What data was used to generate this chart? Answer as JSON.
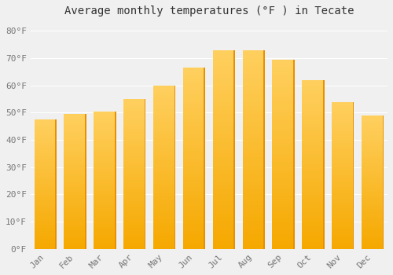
{
  "title": "Average monthly temperatures (°F ) in Tecate",
  "months": [
    "Jan",
    "Feb",
    "Mar",
    "Apr",
    "May",
    "Jun",
    "Jul",
    "Aug",
    "Sep",
    "Oct",
    "Nov",
    "Dec"
  ],
  "values": [
    47.5,
    49.5,
    50.5,
    55.0,
    60.0,
    66.5,
    73.0,
    73.0,
    69.5,
    62.0,
    54.0,
    49.0
  ],
  "bar_color_bottom": "#F5A800",
  "bar_color_top": "#FFD060",
  "bar_color_right_edge": "#E89000",
  "background_color": "#f0f0f0",
  "grid_color": "#ffffff",
  "yticks": [
    0,
    10,
    20,
    30,
    40,
    50,
    60,
    70,
    80
  ],
  "ylim": [
    0,
    83
  ],
  "title_fontsize": 10,
  "tick_fontsize": 8
}
